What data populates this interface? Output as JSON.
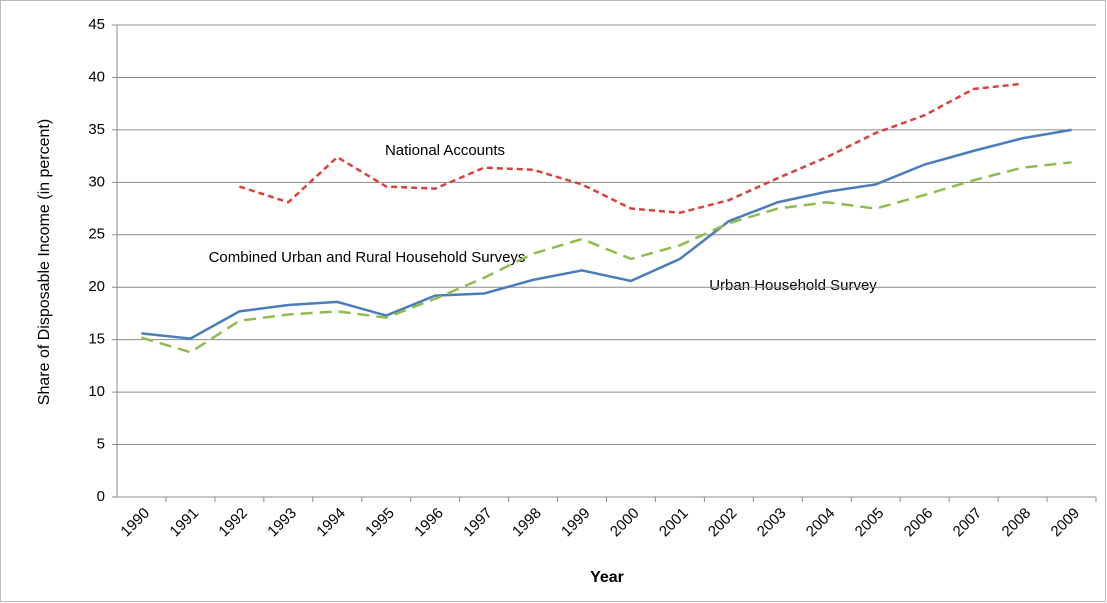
{
  "chart_data": {
    "type": "line",
    "x_label": "Year",
    "y_label": "Share of Disposable Income (in percent)",
    "annotations": [
      "National Accounts",
      "Combined Urban and Rural Household Surveys",
      "Urban Household Survey"
    ],
    "categories": [
      "1990",
      "1991",
      "1992",
      "1993",
      "1994",
      "1995",
      "1996",
      "1997",
      "1998",
      "1999",
      "2000",
      "2001",
      "2002",
      "2003",
      "2004",
      "2005",
      "2006",
      "2007",
      "2008",
      "2009"
    ],
    "series": [
      {
        "name": "Urban Household Survey",
        "color": "#4a7ebb",
        "dash": "none",
        "values": [
          15.6,
          15.1,
          17.7,
          18.3,
          18.6,
          17.3,
          19.2,
          19.4,
          20.7,
          21.6,
          20.6,
          22.7,
          26.3,
          28.1,
          29.1,
          29.8,
          31.7,
          33.0,
          34.2,
          35.0
        ]
      },
      {
        "name": "Combined Urban and Rural Household Surveys",
        "color": "#8fbc4f",
        "dash": "12 7",
        "values": [
          15.2,
          13.8,
          16.8,
          17.4,
          17.7,
          17.1,
          18.9,
          20.9,
          23.2,
          24.6,
          22.7,
          24.0,
          26.1,
          27.5,
          28.1,
          27.5,
          28.8,
          30.2,
          31.4,
          31.9
        ]
      },
      {
        "name": "National Accounts",
        "color": "#d9413b",
        "dash": "6 4",
        "values": [
          null,
          null,
          29.6,
          28.1,
          32.4,
          29.6,
          29.4,
          31.4,
          31.2,
          29.8,
          27.5,
          27.1,
          28.3,
          30.4,
          32.4,
          34.7,
          36.4,
          38.9,
          39.4,
          null
        ]
      }
    ],
    "ylim": [
      0,
      45
    ],
    "yticks": [
      0,
      5,
      10,
      15,
      20,
      25,
      30,
      35,
      40,
      45
    ],
    "grid": true
  }
}
